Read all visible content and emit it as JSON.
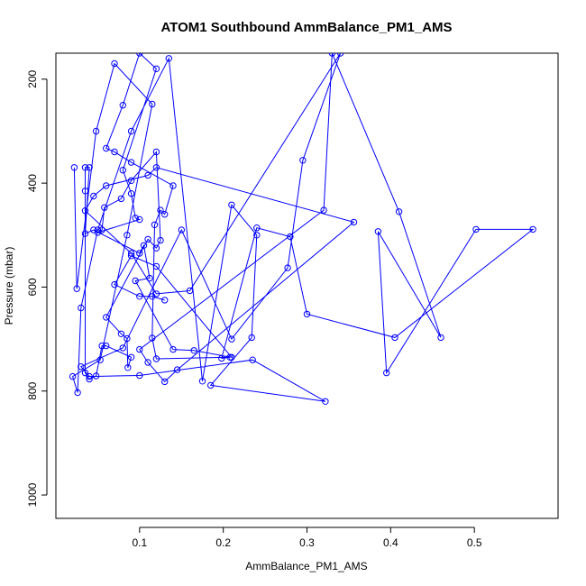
{
  "chart_data": {
    "type": "line",
    "title": "ATOM1 Southbound AmmBalance_PM1_AMS",
    "xlabel": "AmmBalance_PM1_AMS",
    "ylabel": "Pressure (mbar)",
    "xlim": [
      0.0,
      0.6
    ],
    "ylim": [
      1045,
      150
    ],
    "y_reversed": true,
    "xticks": [
      0.1,
      0.2,
      0.3,
      0.4,
      0.5
    ],
    "xtick_labels": [
      "0.1",
      "0.2",
      "0.3",
      "0.4",
      "0.5"
    ],
    "yticks": [
      200,
      400,
      600,
      800,
      1000
    ],
    "ytick_labels": [
      "200",
      "400",
      "600",
      "800",
      "1000"
    ],
    "grid": false,
    "legend": "none",
    "series_style": "line with open circle markers",
    "color": "#0000ff",
    "series": [
      {
        "points": [
          [
            0.022,
            370
          ],
          [
            0.025,
            603
          ],
          [
            0.048,
            300
          ],
          [
            0.07,
            170
          ],
          [
            0.115,
            248
          ],
          [
            0.085,
            500
          ],
          [
            0.053,
            740
          ],
          [
            0.02,
            772
          ],
          [
            0.026,
            803
          ],
          [
            0.03,
            640
          ],
          [
            0.05,
            490
          ],
          [
            0.09,
            300
          ],
          [
            0.135,
            160
          ],
          [
            0.175,
            781
          ],
          [
            0.21,
            442
          ],
          [
            0.24,
            500
          ],
          [
            0.234,
            697
          ],
          [
            0.185,
            789
          ],
          [
            0.322,
            820
          ],
          [
            0.235,
            740
          ],
          [
            0.1,
            770
          ],
          [
            0.04,
            772
          ],
          [
            0.03,
            753
          ],
          [
            0.08,
            717
          ],
          [
            0.15,
            490
          ],
          [
            0.21,
            700
          ],
          [
            0.277,
            563
          ],
          [
            0.295,
            356
          ],
          [
            0.34,
            150
          ],
          [
            0.16,
            607
          ],
          [
            0.12,
            613
          ],
          [
            0.09,
            535
          ],
          [
            0.035,
            453
          ],
          [
            0.045,
            425
          ],
          [
            0.06,
            405
          ],
          [
            0.11,
            385
          ],
          [
            0.12,
            370
          ],
          [
            0.356,
            475
          ],
          [
            0.145,
            759
          ],
          [
            0.13,
            782
          ],
          [
            0.11,
            745
          ],
          [
            0.1,
            720
          ],
          [
            0.32,
            452
          ],
          [
            0.33,
            150
          ],
          [
            0.41,
            455
          ],
          [
            0.46,
            697
          ],
          [
            0.385,
            493
          ],
          [
            0.395,
            765
          ],
          [
            0.502,
            489
          ],
          [
            0.57,
            489
          ],
          [
            0.405,
            697
          ],
          [
            0.3,
            652
          ],
          [
            0.28,
            503
          ],
          [
            0.24,
            486
          ],
          [
            0.198,
            737
          ],
          [
            0.208,
            735
          ],
          [
            0.12,
            738
          ],
          [
            0.115,
            698
          ],
          [
            0.118,
            480
          ],
          [
            0.125,
            452
          ],
          [
            0.13,
            460
          ],
          [
            0.14,
            405
          ],
          [
            0.09,
            360
          ],
          [
            0.07,
            340
          ],
          [
            0.06,
            333
          ],
          [
            0.08,
            250
          ],
          [
            0.1,
            150
          ],
          [
            0.12,
            180
          ],
          [
            0.08,
            375
          ],
          [
            0.09,
            420
          ],
          [
            0.095,
            467
          ],
          [
            0.1,
            470
          ],
          [
            0.05,
            495
          ],
          [
            0.055,
            490
          ],
          [
            0.058,
            447
          ],
          [
            0.078,
            430
          ],
          [
            0.09,
            395
          ],
          [
            0.12,
            340
          ],
          [
            0.125,
            510
          ],
          [
            0.12,
            525
          ],
          [
            0.11,
            508
          ],
          [
            0.06,
            658
          ],
          [
            0.078,
            690
          ],
          [
            0.085,
            699
          ],
          [
            0.086,
            755
          ],
          [
            0.09,
            735
          ],
          [
            0.06,
            713
          ],
          [
            0.055,
            713
          ],
          [
            0.048,
            771
          ],
          [
            0.04,
            777
          ],
          [
            0.035,
            765
          ],
          [
            0.035,
            415
          ],
          [
            0.035,
            370
          ],
          [
            0.04,
            370
          ],
          [
            0.035,
            497
          ],
          [
            0.045,
            490
          ],
          [
            0.1,
            535
          ],
          [
            0.105,
            520
          ],
          [
            0.112,
            583
          ],
          [
            0.095,
            588
          ],
          [
            0.14,
            720
          ],
          [
            0.165,
            722
          ],
          [
            0.21,
            735
          ],
          [
            0.12,
            560
          ],
          [
            0.09,
            540
          ],
          [
            0.07,
            595
          ],
          [
            0.1,
            618
          ],
          [
            0.115,
            618
          ],
          [
            0.13,
            625
          ]
        ]
      }
    ]
  }
}
